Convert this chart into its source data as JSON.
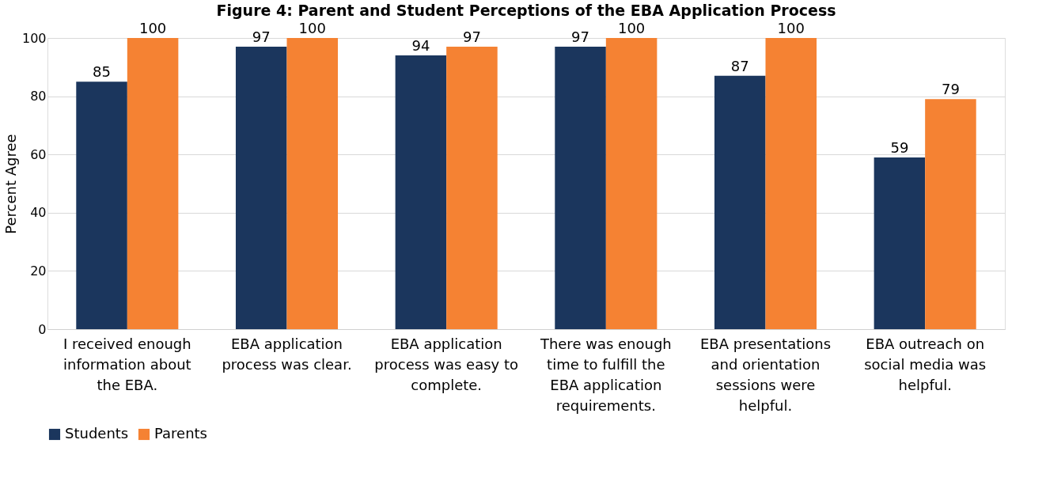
{
  "chart_data": {
    "type": "bar",
    "title": "Figure 4:  Parent and Student Perceptions of the EBA Application Process",
    "ylabel": "Percent Agree",
    "categories": [
      "I received enough information about the EBA.",
      "EBA application process was clear.",
      "EBA application process was easy to complete.",
      "There was enough time to fulfill the EBA application requirements.",
      "EBA presentations and orientation sessions  were helpful.",
      "EBA outreach on social media was helpful."
    ],
    "series": [
      {
        "name": "Students",
        "color": "#1b365d",
        "values": [
          85,
          97,
          94,
          97,
          87,
          59
        ]
      },
      {
        "name": "Parents",
        "color": "#f58233",
        "values": [
          100,
          100,
          97,
          100,
          100,
          79
        ]
      }
    ],
    "ylim": [
      0,
      100
    ],
    "yticks": [
      0,
      20,
      40,
      60,
      80,
      100
    ],
    "grid": "y",
    "legend": "bottom",
    "data_labels": true
  }
}
